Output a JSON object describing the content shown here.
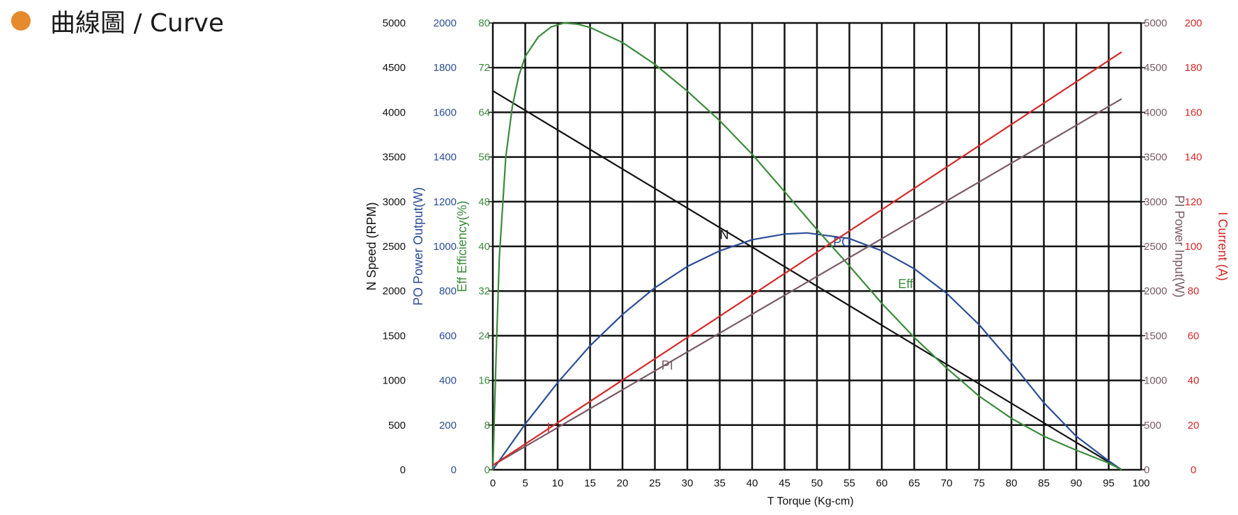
{
  "header": {
    "title": "曲線圖 / Curve",
    "accent_color": "#e68a2e"
  },
  "chart_data": {
    "type": "line",
    "xlabel": "T    Torque (Kg-cm)",
    "xlim": [
      0,
      100
    ],
    "x_ticks": [
      0,
      5,
      10,
      15,
      20,
      25,
      30,
      35,
      40,
      45,
      50,
      55,
      60,
      65,
      70,
      75,
      80,
      85,
      90,
      95,
      100
    ],
    "grid": true,
    "axes": [
      {
        "id": "N",
        "label": "N Speed (RPM)",
        "side": "left",
        "range": [
          0,
          5000
        ],
        "ticks": [
          0,
          500,
          1000,
          1500,
          2000,
          2500,
          3000,
          3500,
          4000,
          4500,
          5000
        ],
        "color": "#111111"
      },
      {
        "id": "PO",
        "label": "PO Power Output(W)",
        "side": "left",
        "range": [
          0,
          2000
        ],
        "ticks": [
          0,
          200,
          400,
          600,
          800,
          1000,
          1200,
          1400,
          1600,
          1800,
          2000
        ],
        "color": "#2a4d96"
      },
      {
        "id": "Eff",
        "label": "Eff Efficiency(%)",
        "side": "left",
        "range": [
          0,
          80
        ],
        "ticks": [
          0,
          8,
          16,
          24,
          32,
          40,
          48,
          56,
          64,
          72,
          80
        ],
        "color": "#3a8a3a"
      },
      {
        "id": "PI",
        "label": "PI   Power Input(W)",
        "side": "right",
        "range": [
          0,
          5000
        ],
        "ticks": [
          0,
          500,
          1000,
          1500,
          2000,
          2500,
          3000,
          3500,
          4000,
          4500,
          5000
        ],
        "color": "#7a5a64"
      },
      {
        "id": "I",
        "label": "I   Current (A)",
        "side": "right",
        "range": [
          0,
          200
        ],
        "ticks": [
          0,
          20,
          40,
          60,
          80,
          100,
          120,
          140,
          160,
          180,
          200
        ],
        "color": "#d42828"
      }
    ],
    "series": [
      {
        "name": "N",
        "axis": "N",
        "color": "#111111",
        "label_at": [
          35,
          2580
        ],
        "x": [
          0,
          97
        ],
        "y": [
          4240,
          0
        ]
      },
      {
        "name": "PO",
        "axis": "PO",
        "color": "#2a4d96",
        "label_at": [
          52.5,
          1000
        ],
        "x": [
          0,
          5,
          10,
          15,
          20,
          25,
          30,
          35,
          40,
          45,
          48.5,
          55,
          60,
          65,
          70,
          75,
          80,
          85,
          90,
          95,
          97
        ],
        "y": [
          0,
          205,
          390,
          555,
          695,
          815,
          910,
          980,
          1030,
          1055,
          1060,
          1035,
          980,
          900,
          790,
          650,
          480,
          300,
          150,
          40,
          0
        ]
      },
      {
        "name": "Eff",
        "axis": "Eff",
        "color": "#3a8a3a",
        "label_at": [
          62.5,
          32.5
        ],
        "x": [
          0,
          0.5,
          1,
          2,
          3,
          4,
          5,
          7,
          9,
          11,
          13,
          15,
          20,
          25,
          30,
          35,
          40,
          45,
          50,
          55,
          60,
          65,
          70,
          75,
          80,
          85,
          90,
          95,
          97
        ],
        "y": [
          0,
          20,
          38,
          56,
          65,
          70.5,
          74,
          77.5,
          79.3,
          80,
          79.8,
          79.2,
          76.5,
          72.6,
          67.8,
          62.5,
          56.5,
          49.8,
          43,
          36.5,
          29.8,
          23.7,
          18.2,
          13.2,
          9.2,
          6,
          3.5,
          1.2,
          0
        ]
      },
      {
        "name": "PI",
        "axis": "PI",
        "color": "#7a5a64",
        "label_at": [
          26,
          1120
        ],
        "x": [
          0,
          97
        ],
        "y": [
          50,
          4150
        ]
      },
      {
        "name": "I",
        "axis": "I",
        "color": "#d42828",
        "label_at": [
          8.3,
          17
        ],
        "x": [
          0,
          97
        ],
        "y": [
          2,
          187
        ]
      }
    ]
  }
}
